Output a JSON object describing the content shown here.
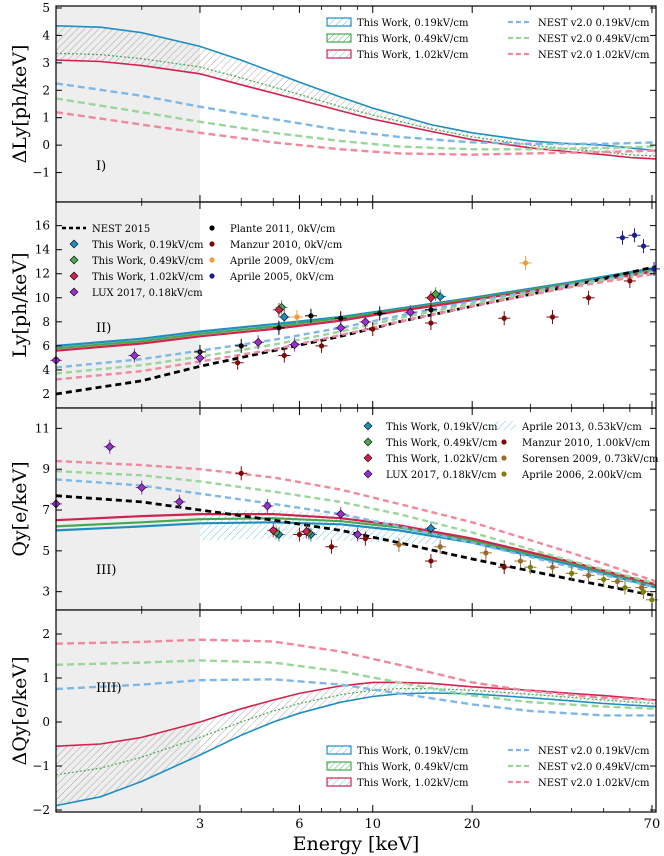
{
  "colors": {
    "blue": "#1f8fc0",
    "green": "#46a84f",
    "red": "#d2234f",
    "nest_blue": "#7fb8e6",
    "nest_green": "#9ad69a",
    "nest_red": "#f0889e",
    "black": "#000000",
    "purple": "#9b2fd0",
    "darkred": "#7a0a0a",
    "orange": "#f39a35",
    "navy": "#1b1f8c",
    "brown": "#9a6a2a",
    "olive": "#7d7d10",
    "aprile2013": "#5cc0d6",
    "shade": "#eeeeee"
  },
  "xaxis": {
    "label": "Energy [keV]",
    "ticks": [
      "3",
      "6",
      "10",
      "20",
      "70"
    ],
    "shade_upto": 3
  },
  "chart_data": [
    {
      "type": "line",
      "panel_label": "I)",
      "ylabel": "ΔLy[ph/keV]",
      "ylim": [
        -2,
        5
      ],
      "yticks": [
        "5",
        "4",
        "3",
        "2",
        "1",
        "0",
        "−1"
      ],
      "legend": [
        "This Work, 0.19kV/cm",
        "This Work, 0.49kV/cm",
        "This Work, 1.02kV/cm",
        "NEST v2.0 0.19kV/cm",
        "NEST v2.0 0.49kV/cm",
        "NEST v2.0 1.02kV/cm"
      ],
      "band_x": [
        1.1,
        1.5,
        2,
        3,
        4,
        6,
        8,
        10,
        15,
        20,
        30,
        40,
        50,
        60,
        72
      ],
      "band_upper": [
        4.35,
        4.3,
        4.1,
        3.6,
        3.1,
        2.3,
        1.75,
        1.35,
        0.75,
        0.45,
        0.15,
        0.05,
        0.0,
        -0.1,
        -0.2
      ],
      "band_lower": [
        3.1,
        3.05,
        2.9,
        2.6,
        2.2,
        1.65,
        1.25,
        0.95,
        0.5,
        0.2,
        -0.1,
        -0.25,
        -0.35,
        -0.45,
        -0.5
      ],
      "mid_line": [
        3.35,
        3.3,
        3.15,
        2.85,
        2.45,
        1.85,
        1.4,
        1.1,
        0.6,
        0.3,
        0.0,
        -0.15,
        -0.25,
        -0.35,
        -0.4
      ],
      "nest": [
        {
          "name": "NEST v2.0 0.19kV/cm",
          "x": [
            1.1,
            2,
            3,
            5,
            8,
            12,
            20,
            30,
            50,
            72
          ],
          "y": [
            2.25,
            1.8,
            1.4,
            0.95,
            0.55,
            0.3,
            0.1,
            0.05,
            0.05,
            0.1
          ]
        },
        {
          "name": "NEST v2.0 0.49kV/cm",
          "x": [
            1.1,
            2,
            3,
            5,
            8,
            12,
            20,
            30,
            50,
            72
          ],
          "y": [
            1.7,
            1.2,
            0.85,
            0.45,
            0.15,
            -0.05,
            -0.15,
            -0.15,
            -0.1,
            -0.05
          ]
        },
        {
          "name": "NEST v2.0 1.02kV/cm",
          "x": [
            1.1,
            2,
            3,
            5,
            8,
            12,
            20,
            30,
            50,
            72
          ],
          "y": [
            1.2,
            0.75,
            0.45,
            0.1,
            -0.15,
            -0.3,
            -0.35,
            -0.3,
            -0.25,
            -0.2
          ]
        }
      ]
    },
    {
      "type": "scatter",
      "panel_label": "II)",
      "ylabel": "Ly[ph/keV]",
      "ylim": [
        1,
        17.8
      ],
      "yticks": [
        "16",
        "14",
        "12",
        "10",
        "8",
        "6",
        "4",
        "2"
      ],
      "legend": [
        "NEST 2015",
        "This Work, 0.19kV/cm",
        "This Work, 0.49kV/cm",
        "This Work, 1.02kV/cm",
        "LUX 2017, 0.18kV/cm",
        "Plante 2011, 0kV/cm",
        "Manzur 2010, 0kV/cm",
        "Aprile 2009, 0kV/cm",
        "Aprile 2005, 0kV/cm"
      ],
      "lines": [
        {
          "name": "This Work, 0.19kV/cm",
          "x": [
            1.1,
            2,
            3,
            5,
            8,
            12,
            20,
            40,
            72
          ],
          "y": [
            6.0,
            6.6,
            7.2,
            7.8,
            8.4,
            9.1,
            10.0,
            11.3,
            12.5
          ]
        },
        {
          "name": "This Work, 0.49kV/cm",
          "x": [
            1.1,
            2,
            3,
            5,
            8,
            12,
            20,
            40,
            72
          ],
          "y": [
            5.8,
            6.4,
            7.0,
            7.6,
            8.3,
            9.0,
            9.9,
            11.2,
            12.3
          ]
        },
        {
          "name": "This Work, 1.02kV/cm",
          "x": [
            1.1,
            2,
            3,
            5,
            8,
            12,
            20,
            40,
            72
          ],
          "y": [
            5.6,
            6.2,
            6.8,
            7.4,
            8.1,
            8.9,
            9.8,
            11.1,
            12.2
          ]
        },
        {
          "name": "NEST 2015",
          "x": [
            1.1,
            2,
            3,
            5,
            8,
            12,
            20,
            40,
            72
          ],
          "y": [
            2.0,
            3.1,
            4.3,
            5.6,
            6.8,
            8.0,
            9.3,
            11.0,
            12.6
          ]
        },
        {
          "name": "NEST v2.0 0.19kV/cm",
          "x": [
            1.1,
            2,
            3,
            5,
            8,
            12,
            20,
            40,
            72
          ],
          "y": [
            4.2,
            4.9,
            5.6,
            6.5,
            7.5,
            8.5,
            9.7,
            11.1,
            12.2
          ]
        },
        {
          "name": "NEST v2.0 0.49kV/cm",
          "x": [
            1.1,
            2,
            3,
            5,
            8,
            12,
            20,
            40,
            72
          ],
          "y": [
            3.7,
            4.4,
            5.1,
            6.1,
            7.2,
            8.3,
            9.5,
            11.0,
            12.1
          ]
        },
        {
          "name": "NEST v2.0 1.02kV/cm",
          "x": [
            1.1,
            2,
            3,
            5,
            8,
            12,
            20,
            40,
            72
          ],
          "y": [
            3.2,
            3.9,
            4.7,
            5.7,
            6.9,
            8.0,
            9.3,
            10.9,
            12.0
          ]
        }
      ],
      "points": [
        {
          "name": "Plante 2011",
          "x": [
            3.0,
            4.0,
            5.2,
            6.5,
            8.0,
            10.5,
            15.0
          ],
          "y": [
            5.5,
            6.0,
            7.5,
            8.5,
            8.3,
            8.7,
            9.0
          ]
        },
        {
          "name": "Manzur 2010",
          "x": [
            3.9,
            5.4,
            7.0,
            10.0,
            15.0,
            25.0,
            35.0,
            45.0,
            60.0
          ],
          "y": [
            4.6,
            5.2,
            6.0,
            7.4,
            7.9,
            8.3,
            8.4,
            10.0,
            11.4
          ]
        },
        {
          "name": "Aprile 2009",
          "x": [
            5.9,
            29.0
          ],
          "y": [
            8.4,
            12.9
          ]
        },
        {
          "name": "Aprile 2005",
          "x": [
            57.0,
            62.0,
            66.0,
            71.0
          ],
          "y": [
            15.0,
            15.2,
            14.3,
            12.4
          ]
        },
        {
          "name": "LUX 2017",
          "x": [
            1.1,
            1.9,
            3.0,
            4.5,
            5.8,
            8.0,
            9.5,
            13.0
          ],
          "y": [
            4.8,
            5.2,
            5.0,
            6.3,
            6.1,
            7.5,
            8.0,
            8.8
          ]
        },
        {
          "name": "This Work, 0.19kV/cm",
          "x": [
            5.4,
            16.0
          ],
          "y": [
            8.4,
            10.1
          ]
        },
        {
          "name": "This Work, 0.49kV/cm",
          "x": [
            5.3,
            15.5
          ],
          "y": [
            9.2,
            10.3
          ]
        },
        {
          "name": "This Work, 1.02kV/cm",
          "x": [
            5.2,
            15.0
          ],
          "y": [
            9.0,
            10.0
          ]
        }
      ]
    },
    {
      "type": "scatter",
      "panel_label": "III)",
      "ylabel": "Qy[e/keV]",
      "ylim": [
        2.2,
        11.9
      ],
      "yticks": [
        "11",
        "9",
        "7",
        "5",
        "3"
      ],
      "legend": [
        "This Work, 0.19kV/cm",
        "This Work, 0.49kV/cm",
        "This Work, 1.02kV/cm",
        "LUX 2017, 0.18kV/cm",
        "Aprile 2013, 0.53kV/cm",
        "Manzur 2010, 1.00kV/cm",
        "Sorensen 2009, 0.73kV/cm",
        "Aprile 2006, 2.00kV/cm"
      ],
      "lines": [
        {
          "name": "This Work, 0.19kV/cm",
          "x": [
            1.1,
            2,
            3,
            5,
            8,
            12,
            20,
            40,
            72
          ],
          "y": [
            6.0,
            6.2,
            6.35,
            6.4,
            6.3,
            6.0,
            5.4,
            4.3,
            3.2
          ]
        },
        {
          "name": "This Work, 0.49kV/cm",
          "x": [
            1.1,
            2,
            3,
            5,
            8,
            12,
            20,
            40,
            72
          ],
          "y": [
            6.2,
            6.4,
            6.55,
            6.6,
            6.45,
            6.15,
            5.5,
            4.4,
            3.3
          ]
        },
        {
          "name": "This Work, 1.02kV/cm",
          "x": [
            1.1,
            2,
            3,
            5,
            8,
            12,
            20,
            40,
            72
          ],
          "y": [
            6.5,
            6.7,
            6.8,
            6.8,
            6.6,
            6.25,
            5.6,
            4.45,
            3.35
          ]
        },
        {
          "name": "NEST 2015",
          "x": [
            1.1,
            2,
            3,
            5,
            8,
            12,
            20,
            40,
            72
          ],
          "y": [
            7.7,
            7.4,
            7.0,
            6.5,
            6.0,
            5.4,
            4.6,
            3.6,
            2.8
          ]
        },
        {
          "name": "NEST v2.0 0.19kV/cm",
          "x": [
            1.1,
            2,
            3,
            5,
            8,
            12,
            20,
            40,
            72
          ],
          "y": [
            8.5,
            8.2,
            7.8,
            7.3,
            6.8,
            6.2,
            5.4,
            4.2,
            3.2
          ]
        },
        {
          "name": "NEST v2.0 0.49kV/cm",
          "x": [
            1.1,
            2,
            3,
            5,
            8,
            12,
            20,
            40,
            72
          ],
          "y": [
            8.9,
            8.7,
            8.4,
            7.9,
            7.4,
            6.8,
            5.9,
            4.5,
            3.4
          ]
        },
        {
          "name": "NEST v2.0 1.02kV/cm",
          "x": [
            1.1,
            2,
            3,
            5,
            8,
            12,
            20,
            40,
            72
          ],
          "y": [
            9.4,
            9.2,
            9.0,
            8.6,
            8.0,
            7.3,
            6.4,
            4.9,
            3.5
          ]
        }
      ],
      "points": [
        {
          "name": "LUX 2017",
          "x": [
            1.1,
            1.6,
            2.0,
            2.6,
            4.8,
            8.0,
            9.0
          ],
          "y": [
            7.3,
            10.1,
            8.1,
            7.4,
            7.2,
            6.8,
            5.8
          ]
        },
        {
          "name": "Manzur 2010",
          "x": [
            4.0,
            6.0,
            7.5,
            9.5,
            15.0,
            25.0
          ],
          "y": [
            8.8,
            5.8,
            5.2,
            5.6,
            4.5,
            4.2
          ]
        },
        {
          "name": "Sorensen 2009",
          "x": [
            12.0,
            16.0,
            22.0,
            28.0,
            35.0,
            45.0,
            55.0,
            65.0
          ],
          "y": [
            5.3,
            5.2,
            4.9,
            4.5,
            4.2,
            3.8,
            3.5,
            3.2
          ]
        },
        {
          "name": "Aprile 2006",
          "x": [
            30.0,
            40.0,
            50.0,
            58.0,
            66.0,
            70.0
          ],
          "y": [
            4.2,
            3.9,
            3.6,
            3.2,
            3.0,
            2.6
          ]
        },
        {
          "name": "This Work, 0.19kV/cm",
          "x": [
            5.2,
            6.5,
            15.0
          ],
          "y": [
            5.8,
            5.8,
            6.1
          ]
        },
        {
          "name": "This Work, 0.49kV/cm",
          "x": [
            5.1,
            6.4
          ],
          "y": [
            5.9,
            5.9
          ]
        },
        {
          "name": "This Work, 1.02kV/cm",
          "x": [
            5.0,
            6.3
          ],
          "y": [
            6.0,
            5.95
          ]
        }
      ],
      "aprile2013_band": {
        "x": [
          3.0,
          5.0,
          8.0,
          12.0,
          16.0
        ],
        "upper": [
          7.0,
          7.0,
          6.8,
          6.4,
          6.1
        ],
        "lower": [
          5.5,
          5.6,
          5.5,
          5.4,
          5.3
        ]
      }
    },
    {
      "type": "line",
      "panel_label": "IIII)",
      "ylabel": "ΔQy[e/keV]",
      "ylim": [
        -2,
        2.5
      ],
      "yticks": [
        "2",
        "1",
        "0",
        "−1",
        "−2"
      ],
      "legend": [
        "This Work, 0.19kV/cm",
        "This Work, 0.49kV/cm",
        "This Work, 1.02kV/cm",
        "NEST v2.0 0.19kV/cm",
        "NEST v2.0 0.49kV/cm",
        "NEST v2.0 1.02kV/cm"
      ],
      "band_x": [
        1.1,
        1.5,
        2,
        3,
        4,
        5,
        6,
        8,
        10,
        12,
        15,
        20,
        30,
        40,
        50,
        72
      ],
      "band_upper": [
        -0.55,
        -0.5,
        -0.35,
        0.0,
        0.3,
        0.5,
        0.65,
        0.82,
        0.9,
        0.9,
        0.88,
        0.8,
        0.72,
        0.65,
        0.6,
        0.5
      ],
      "band_lower": [
        -1.9,
        -1.7,
        -1.35,
        -0.75,
        -0.3,
        0.0,
        0.2,
        0.45,
        0.58,
        0.64,
        0.66,
        0.64,
        0.55,
        0.48,
        0.42,
        0.35
      ],
      "mid_line": [
        -1.2,
        -1.05,
        -0.8,
        -0.35,
        0.0,
        0.25,
        0.42,
        0.62,
        0.72,
        0.76,
        0.76,
        0.72,
        0.63,
        0.56,
        0.5,
        0.42
      ],
      "nest": [
        {
          "name": "NEST v2.0 0.19kV/cm",
          "x": [
            1.1,
            2,
            3,
            5,
            8,
            12,
            20,
            30,
            50,
            72
          ],
          "y": [
            0.75,
            0.85,
            0.95,
            0.97,
            0.85,
            0.65,
            0.4,
            0.25,
            0.15,
            0.15
          ]
        },
        {
          "name": "NEST v2.0 0.49kV/cm",
          "x": [
            1.1,
            2,
            3,
            5,
            8,
            12,
            20,
            30,
            50,
            72
          ],
          "y": [
            1.3,
            1.35,
            1.4,
            1.35,
            1.15,
            0.9,
            0.6,
            0.45,
            0.35,
            0.3
          ]
        },
        {
          "name": "NEST v2.0 1.02kV/cm",
          "x": [
            1.1,
            2,
            3,
            5,
            8,
            12,
            20,
            30,
            50,
            72
          ],
          "y": [
            1.78,
            1.82,
            1.87,
            1.83,
            1.6,
            1.3,
            0.9,
            0.7,
            0.55,
            0.5
          ]
        }
      ]
    }
  ]
}
